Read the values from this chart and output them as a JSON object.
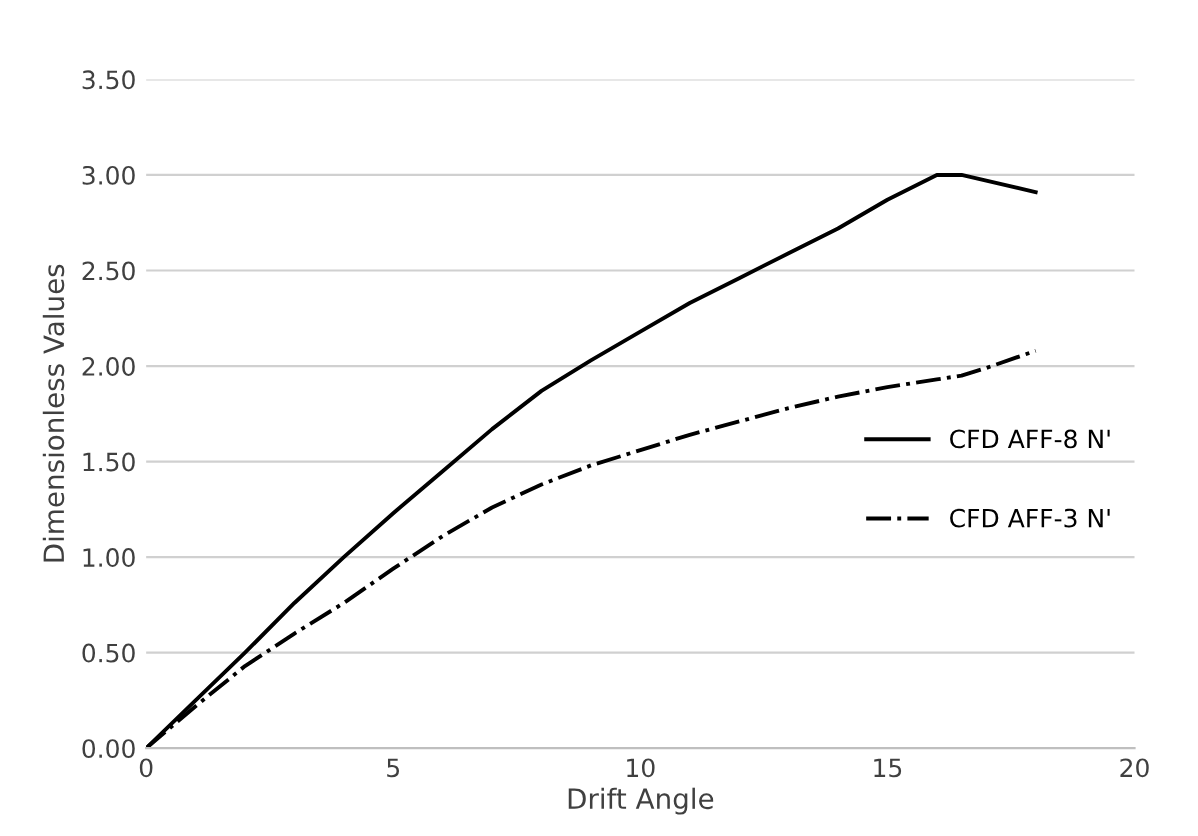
{
  "chart_data": {
    "type": "line",
    "xlabel": "Drift Angle",
    "ylabel": "Dimensionless Values",
    "x": [
      0,
      1,
      2,
      3,
      4,
      5,
      6,
      7,
      8,
      9,
      10,
      11,
      12,
      13,
      14,
      15,
      16,
      16.5,
      17,
      18
    ],
    "series": [
      {
        "name": "CFD AFF-8 N'",
        "color": "#000000",
        "line_style": "solid",
        "values": [
          0,
          0.25,
          0.5,
          0.76,
          1.0,
          1.23,
          1.45,
          1.67,
          1.87,
          2.03,
          2.18,
          2.33,
          2.46,
          2.59,
          2.72,
          2.87,
          3.0,
          3.0,
          2.97,
          2.91
        ]
      },
      {
        "name": "CFD AFF-3 N'",
        "color": "#000000",
        "line_style": "dashdot",
        "values": [
          0,
          0.22,
          0.43,
          0.6,
          0.76,
          0.94,
          1.11,
          1.26,
          1.38,
          1.48,
          1.56,
          1.64,
          1.71,
          1.78,
          1.84,
          1.89,
          1.93,
          1.95,
          1.99,
          2.08
        ]
      }
    ],
    "xlim": [
      0,
      20
    ],
    "xticks": [
      0,
      5,
      10,
      15,
      20
    ],
    "ylim": [
      0,
      3.5
    ],
    "yticks": [
      {
        "value": 0,
        "label": "0.00"
      },
      {
        "value": 0.5,
        "label": "0.50"
      },
      {
        "value": 1,
        "label": "1.00"
      },
      {
        "value": 1.5,
        "label": "1.50"
      },
      {
        "value": 2,
        "label": "2.00"
      },
      {
        "value": 2.5,
        "label": "2.50"
      },
      {
        "value": 3,
        "label": "3.00"
      },
      {
        "value": 3.5,
        "label": "3.50"
      }
    ],
    "grid": "y",
    "legend": "right",
    "marker": "none"
  }
}
